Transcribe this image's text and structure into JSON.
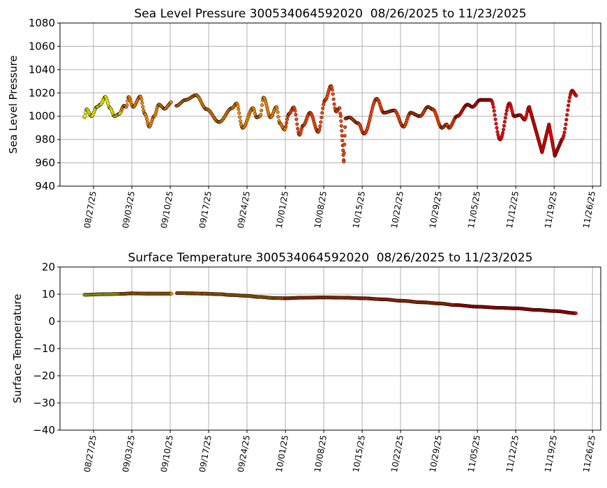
{
  "chart_data": [
    {
      "type": "scatter",
      "title": "Sea Level Pressure 300534064592020  08/26/2025 to 11/23/2025",
      "xlabel": "",
      "ylabel": "Sea Level Pressure",
      "ylim": [
        940,
        1080
      ],
      "yticks": [
        940,
        960,
        980,
        1000,
        1020,
        1040,
        1060,
        1080
      ],
      "x_units": "days since 08/27/25",
      "xlim": [
        -6.1,
        92.5
      ],
      "xticks": [
        0,
        7,
        14,
        21,
        28,
        35,
        42,
        49,
        56,
        63,
        70,
        77,
        84,
        91
      ],
      "xtick_labels": [
        "08/27/25",
        "09/03/25",
        "09/10/25",
        "09/17/25",
        "09/24/25",
        "10/01/25",
        "10/08/25",
        "10/15/25",
        "10/22/25",
        "10/29/25",
        "11/05/25",
        "11/12/25",
        "11/19/25",
        "11/26/25"
      ],
      "grid": true,
      "month_colors": {
        "8": "#ffff00",
        "9": "#ff8c00",
        "10": "#ff4500",
        "11": "#ff0000"
      },
      "series": [
        {
          "name": "pressure",
          "x": [
            -1.65,
            -1.23,
            -0.38,
            0.64,
            1.27,
            2.16,
            3.02,
            3.82,
            4.71,
            5.56,
            5.98,
            6.4,
            7.25,
            8.53,
            9.38,
            10.18,
            11.07,
            11.93,
            12.98,
            14.25,
            null,
            15.11,
            16.8,
            18.71,
            20.62,
            22.91,
            25.29,
            26.09,
            27.2,
            29.11,
            29.74,
            30.38,
            31.02,
            32.29,
            33.35,
            33.98,
            34.84,
            35.64,
            36.53,
            37.58,
            38.22,
            39.49,
            40.98,
            42.26,
            43.31,
            44.25,
            44.89,
            45.09,
            45.65,
            45.95,
            46.58,
            48.28,
            49.35,
            51.67,
            52.95,
            54.86,
            56.55,
            57.82,
            59.53,
            61.0,
            61.86,
            63.55,
            64.4,
            64.83,
            66.31,
            68.22,
            69.08,
            70.55,
            72.46,
            74.16,
            75.86,
            76.71,
            77.77,
            78.62,
            79.46,
            81.8,
            83.07,
            84.13,
            85.4,
            87.31,
            88.07
          ],
          "y": [
            999,
            1006,
            1000,
            1008,
            1010,
            1016.6,
            1007,
            1000,
            1002,
            1009,
            1008,
            1016.5,
            1008,
            1017,
            1002,
            991,
            1000,
            1010,
            1006.4,
            1012,
            null,
            1009,
            1014,
            1018,
            1006,
            995,
            1007,
            1011,
            990,
            1007,
            999,
            1000,
            1016,
            999,
            1008,
            994,
            988.5,
            1002,
            1007.6,
            984,
            992,
            1003,
            986.5,
            1014,
            1026,
            1004,
            1007,
            1000,
            961,
            998,
            999,
            994,
            985,
            1015,
            1003,
            1005,
            991,
            1003,
            1000,
            1008,
            1006,
            990,
            993,
            990,
            1000,
            1010,
            1008,
            1014,
            1014,
            980,
            1011,
            1000,
            1001,
            997,
            1008,
            969,
            993,
            966,
            980,
            1022,
            1017.6
          ]
        }
      ]
    },
    {
      "type": "scatter",
      "title": "Surface Temperature 300534064592020  08/26/2025 to 11/23/2025",
      "xlabel": "",
      "ylabel": "Surface Temperature",
      "ylim": [
        -40,
        20
      ],
      "yticks": [
        -40,
        -30,
        -20,
        -10,
        0,
        10,
        20
      ],
      "yticks_text": [
        "−40",
        "−30",
        "−20",
        "−10",
        "0",
        "10",
        "20"
      ],
      "x_units": "days since 08/27/25",
      "xlim": [
        -6.1,
        92.5
      ],
      "xticks": [
        0,
        7,
        14,
        21,
        28,
        35,
        42,
        49,
        56,
        63,
        70,
        77,
        84,
        91
      ],
      "xtick_labels": [
        "08/27/25",
        "09/03/25",
        "09/10/25",
        "09/17/25",
        "09/24/25",
        "10/01/25",
        "10/08/25",
        "10/15/25",
        "10/22/25",
        "10/29/25",
        "11/05/25",
        "11/12/25",
        "11/19/25",
        "11/26/25"
      ],
      "grid": true,
      "month_colors": {
        "8": "#ffff00",
        "9": "#ff8c00",
        "10": "#ff4500",
        "11": "#ff0000"
      },
      "series": [
        {
          "name": "surface temperature",
          "x": [
            -1.65,
            2,
            5,
            7,
            10,
            14.25,
            null,
            15.2,
            18,
            20,
            23,
            25,
            28,
            30,
            33,
            35,
            38,
            42,
            46,
            49,
            53,
            56,
            60,
            63,
            66,
            70,
            74,
            77,
            81,
            84,
            88.07
          ],
          "y": [
            9.8,
            10.0,
            10.1,
            10.3,
            10.2,
            10.2,
            null,
            10.4,
            10.3,
            10.2,
            10.0,
            9.7,
            9.4,
            9.0,
            8.6,
            8.5,
            8.7,
            8.8,
            8.7,
            8.5,
            8.1,
            7.6,
            7.0,
            6.6,
            6.0,
            5.4,
            5.0,
            4.8,
            4.2,
            3.8,
            3.0
          ]
        }
      ]
    }
  ]
}
